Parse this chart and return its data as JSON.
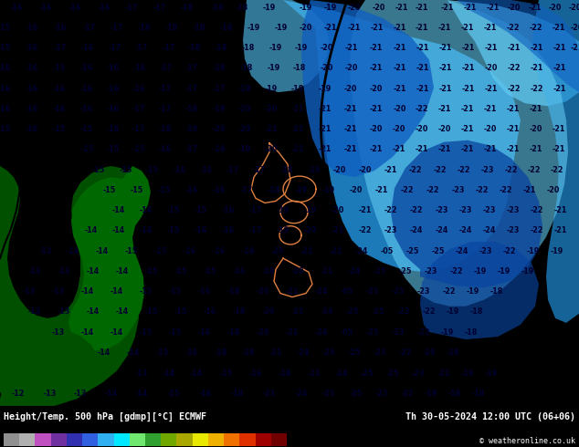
{
  "title_left": "Height/Temp. 500 hPa [gdmp][°C] ECMWF",
  "title_right": "Th 30-05-2024 12:00 UTC (06+06)",
  "copyright": "© weatheronline.co.uk",
  "colorbar_colors": [
    "#909090",
    "#b0b0b0",
    "#c050c0",
    "#7030a0",
    "#3030b0",
    "#3060e0",
    "#30b0f0",
    "#00e8ff",
    "#70e870",
    "#30a030",
    "#70a800",
    "#a8a800",
    "#e8e800",
    "#f0b000",
    "#f07000",
    "#e03000",
    "#a00000",
    "#700000"
  ],
  "tick_vals": [
    -54,
    -48,
    -42,
    -38,
    -30,
    -24,
    -18,
    -12,
    -8,
    0,
    6,
    12,
    18,
    24,
    30,
    36,
    42,
    48,
    54
  ],
  "bg_cyan": "#00e4ff",
  "bg_light_blue": "#60c8f0",
  "bg_med_blue": "#2090d8",
  "bg_dark_blue": "#1060c0",
  "bg_darker_blue": "#0844a0",
  "land_dark": "#005000",
  "land_mid": "#006800",
  "land_light": "#208820"
}
